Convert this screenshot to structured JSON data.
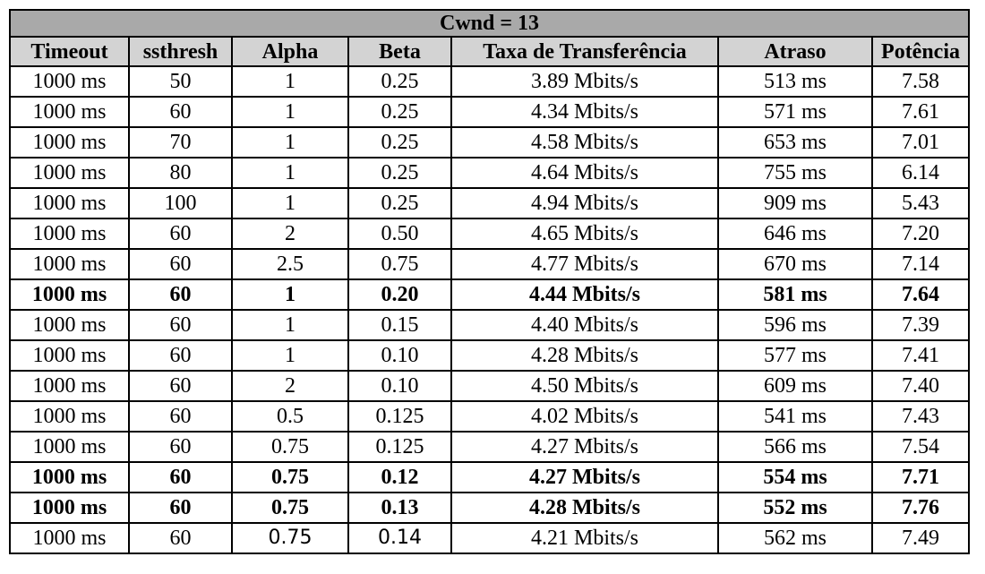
{
  "table": {
    "title": "Cwnd = 13",
    "headers": [
      "Timeout",
      "ssthresh",
      "Alpha",
      "Beta",
      "Taxa de Transferência",
      "Atraso",
      "Potência"
    ],
    "rows": [
      {
        "timeout": "1000 ms",
        "ssthresh": "50",
        "alpha": "1",
        "beta": "0.25",
        "taxa": "3.89 Mbits/s",
        "atraso": "513 ms",
        "potencia": "7.58",
        "bold": false
      },
      {
        "timeout": "1000 ms",
        "ssthresh": "60",
        "alpha": "1",
        "beta": "0.25",
        "taxa": "4.34 Mbits/s",
        "atraso": "571 ms",
        "potencia": "7.61",
        "bold": false
      },
      {
        "timeout": "1000 ms",
        "ssthresh": "70",
        "alpha": "1",
        "beta": "0.25",
        "taxa": "4.58 Mbits/s",
        "atraso": "653 ms",
        "potencia": "7.01",
        "bold": false
      },
      {
        "timeout": "1000 ms",
        "ssthresh": "80",
        "alpha": "1",
        "beta": "0.25",
        "taxa": "4.64 Mbits/s",
        "atraso": "755 ms",
        "potencia": "6.14",
        "bold": false
      },
      {
        "timeout": "1000 ms",
        "ssthresh": "100",
        "alpha": "1",
        "beta": "0.25",
        "taxa": "4.94 Mbits/s",
        "atraso": "909 ms",
        "potencia": "5.43",
        "bold": false
      },
      {
        "timeout": "1000 ms",
        "ssthresh": "60",
        "alpha": "2",
        "beta": "0.50",
        "taxa": "4.65 Mbits/s",
        "atraso": "646 ms",
        "potencia": "7.20",
        "bold": false
      },
      {
        "timeout": "1000 ms",
        "ssthresh": "60",
        "alpha": "2.5",
        "beta": "0.75",
        "taxa": "4.77 Mbits/s",
        "atraso": "670 ms",
        "potencia": "7.14",
        "bold": false
      },
      {
        "timeout": "1000 ms",
        "ssthresh": "60",
        "alpha": "1",
        "beta": "0.20",
        "taxa": "4.44 Mbits/s",
        "atraso": "581 ms",
        "potencia": "7.64",
        "bold": true
      },
      {
        "timeout": "1000 ms",
        "ssthresh": "60",
        "alpha": "1",
        "beta": "0.15",
        "taxa": "4.40 Mbits/s",
        "atraso": "596 ms",
        "potencia": "7.39",
        "bold": false
      },
      {
        "timeout": "1000 ms",
        "ssthresh": "60",
        "alpha": "1",
        "beta": "0.10",
        "taxa": "4.28 Mbits/s",
        "atraso": "577 ms",
        "potencia": "7.41",
        "bold": false
      },
      {
        "timeout": "1000 ms",
        "ssthresh": "60",
        "alpha": "2",
        "beta": "0.10",
        "taxa": "4.50 Mbits/s",
        "atraso": "609 ms",
        "potencia": "7.40",
        "bold": false
      },
      {
        "timeout": "1000 ms",
        "ssthresh": "60",
        "alpha": "0.5",
        "beta": "0.125",
        "taxa": "4.02 Mbits/s",
        "atraso": "541 ms",
        "potencia": "7.43",
        "bold": false
      },
      {
        "timeout": "1000 ms",
        "ssthresh": "60",
        "alpha": "0.75",
        "beta": "0.125",
        "taxa": "4.27 Mbits/s",
        "atraso": "566 ms",
        "potencia": "7.54",
        "bold": false
      },
      {
        "timeout": "1000 ms",
        "ssthresh": "60",
        "alpha": "0.75",
        "beta": "0.12",
        "taxa": "4.27 Mbits/s",
        "atraso": "554 ms",
        "potencia": "7.71",
        "bold": true
      },
      {
        "timeout": "1000 ms",
        "ssthresh": "60",
        "alpha": "0.75",
        "beta": "0.13",
        "taxa": "4.28 Mbits/s",
        "atraso": "552 ms",
        "potencia": "7.76",
        "bold": true
      },
      {
        "timeout": "1000 ms",
        "ssthresh": "60",
        "alpha": "0.75",
        "beta": "0.14",
        "taxa": "4.21 Mbits/s",
        "atraso": "562 ms",
        "potencia": "7.49",
        "bold": false,
        "sans_cols": [
          "alpha",
          "beta"
        ]
      }
    ]
  },
  "colors": {
    "title_bg": "#a9a9a9",
    "header_bg": "#d3d3d3",
    "border": "#000000"
  }
}
